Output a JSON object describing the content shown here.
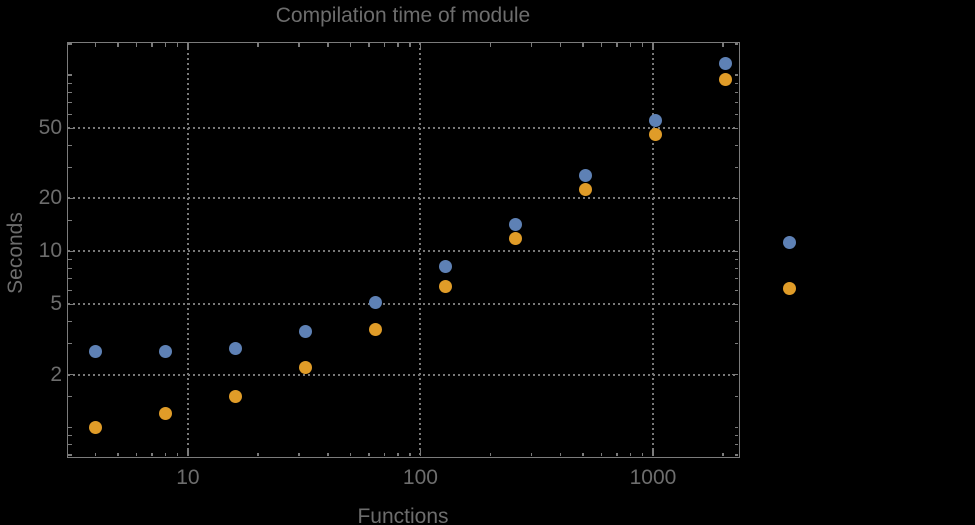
{
  "title": "Compilation time of module",
  "colors": {
    "background": "#000000",
    "frame": "#7b7b7b",
    "gridlines": "#787878",
    "text": "#6d6d6d",
    "series1_blue": "#5e81b5",
    "series2_orange": "#e09c28"
  },
  "legend": {
    "labels_visible": false,
    "markers": [
      {
        "name": "series-1-blue",
        "color": "#5e81b5"
      },
      {
        "name": "series-2-orange",
        "color": "#e09c28"
      }
    ]
  },
  "chart_data": {
    "type": "scatter",
    "title": "Compilation time of module",
    "xlabel": "Functions",
    "ylabel": "Seconds",
    "x_scale": "log",
    "y_scale": "log",
    "xlim": [
      3.05,
      2321
    ],
    "ylim": [
      0.69,
      152.4
    ],
    "grid": "dotted",
    "legend_position": "right-outside",
    "x": [
      4,
      8,
      16,
      32,
      64,
      128,
      256,
      512,
      1024,
      2048
    ],
    "series": [
      {
        "name": "series-1-blue",
        "color": "#5e81b5",
        "values": [
          2.7,
          2.7,
          2.8,
          3.5,
          5.1,
          8.2,
          14.3,
          27,
          55,
          116
        ]
      },
      {
        "name": "series-2-orange",
        "color": "#e09c28",
        "values": [
          1.0,
          1.2,
          1.5,
          2.2,
          3.6,
          6.3,
          11.8,
          22.4,
          46,
          95
        ]
      }
    ],
    "x_ticks": [
      {
        "value": 10,
        "label": "10"
      },
      {
        "value": 100,
        "label": "100"
      },
      {
        "value": 1000,
        "label": "1000"
      }
    ],
    "y_ticks": [
      {
        "value": 2,
        "label": "2"
      },
      {
        "value": 5,
        "label": "5"
      },
      {
        "value": 10,
        "label": "10"
      },
      {
        "value": 20,
        "label": "20"
      },
      {
        "value": 50,
        "label": "50"
      }
    ],
    "x_minor_ticks": [
      4,
      5,
      6,
      7,
      8,
      9,
      20,
      30,
      40,
      50,
      60,
      70,
      80,
      90,
      200,
      300,
      400,
      500,
      600,
      700,
      800,
      900,
      2000
    ],
    "y_minor_ticks": [
      0.7,
      0.8,
      0.9,
      1,
      1.5,
      3,
      4,
      6,
      7,
      8,
      9,
      15,
      30,
      40,
      60,
      70,
      80,
      90,
      100,
      150
    ]
  }
}
